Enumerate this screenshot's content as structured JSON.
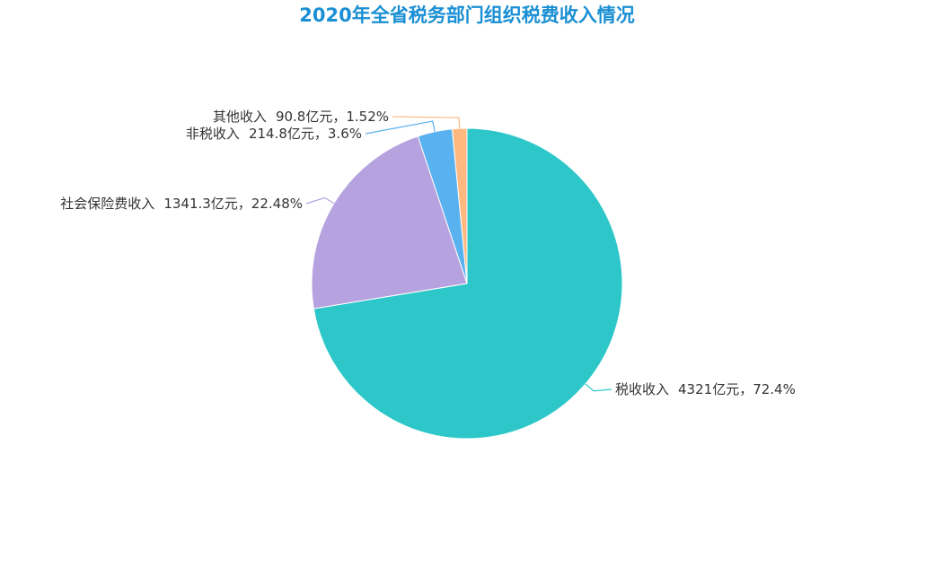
{
  "chart_data": {
    "type": "pie",
    "title": "2020年全省税务部门组织税费收入情况",
    "categories": [
      "税收收入",
      "社会保险费收入",
      "非税收入",
      "其他收入"
    ],
    "values": [
      4321,
      1341.3,
      214.8,
      90.8
    ],
    "value_labels": [
      "4321亿元，72.4%",
      "1341.3亿元，22.48%",
      "214.8亿元，3.6%",
      "90.8亿元，1.52%"
    ],
    "colors": [
      "#2ec7c9",
      "#b6a2de",
      "#5ab1ef",
      "#ffb980"
    ]
  }
}
